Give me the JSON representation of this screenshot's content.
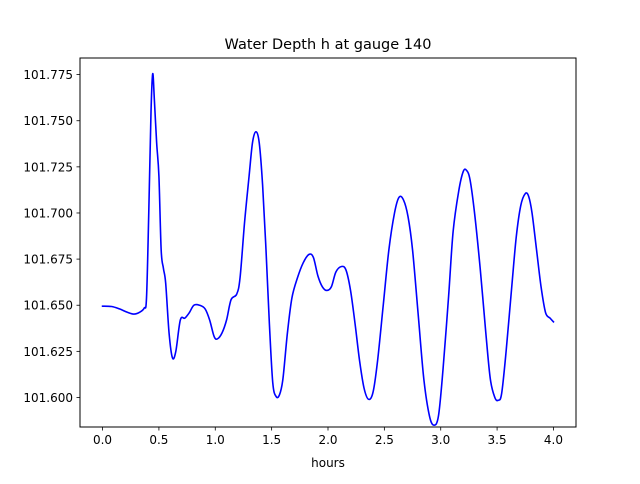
{
  "chart_data": {
    "type": "line",
    "title": "Water Depth h at gauge 140",
    "xlabel": "hours",
    "ylabel": "",
    "xlim": [
      -0.2,
      4.2
    ],
    "ylim": [
      101.584,
      101.784
    ],
    "grid": false,
    "legend": "none",
    "x_ticks": [
      {
        "value": 0.0,
        "label": "0.0"
      },
      {
        "value": 0.5,
        "label": "0.5"
      },
      {
        "value": 1.0,
        "label": "1.0"
      },
      {
        "value": 1.5,
        "label": "1.5"
      },
      {
        "value": 2.0,
        "label": "2.0"
      },
      {
        "value": 2.5,
        "label": "2.5"
      },
      {
        "value": 3.0,
        "label": "3.0"
      },
      {
        "value": 3.5,
        "label": "3.5"
      },
      {
        "value": 4.0,
        "label": "4.0"
      }
    ],
    "y_ticks": [
      {
        "value": 101.6,
        "label": "101.600"
      },
      {
        "value": 101.625,
        "label": "101.625"
      },
      {
        "value": 101.65,
        "label": "101.650"
      },
      {
        "value": 101.675,
        "label": "101.675"
      },
      {
        "value": 101.7,
        "label": "101.700"
      },
      {
        "value": 101.725,
        "label": "101.725"
      },
      {
        "value": 101.75,
        "label": "101.750"
      },
      {
        "value": 101.775,
        "label": "101.775"
      }
    ],
    "series": [
      {
        "color": "#0000ff",
        "points": [
          [
            0.0,
            101.6495
          ],
          [
            0.08,
            101.6493
          ],
          [
            0.15,
            101.648
          ],
          [
            0.22,
            101.6462
          ],
          [
            0.28,
            101.6452
          ],
          [
            0.33,
            101.6462
          ],
          [
            0.37,
            101.6485
          ],
          [
            0.39,
            101.654
          ],
          [
            0.41,
            101.7
          ],
          [
            0.43,
            101.755
          ],
          [
            0.445,
            101.7755
          ],
          [
            0.46,
            101.761
          ],
          [
            0.48,
            101.738
          ],
          [
            0.5,
            101.72
          ],
          [
            0.52,
            101.68
          ],
          [
            0.54,
            101.67
          ],
          [
            0.56,
            101.662
          ],
          [
            0.59,
            101.635
          ],
          [
            0.62,
            101.6215
          ],
          [
            0.65,
            101.625
          ],
          [
            0.69,
            101.642
          ],
          [
            0.73,
            101.643
          ],
          [
            0.77,
            101.646
          ],
          [
            0.81,
            101.65
          ],
          [
            0.86,
            101.65
          ],
          [
            0.91,
            101.648
          ],
          [
            0.95,
            101.642
          ],
          [
            0.99,
            101.633
          ],
          [
            1.02,
            101.6318
          ],
          [
            1.06,
            101.635
          ],
          [
            1.1,
            101.642
          ],
          [
            1.14,
            101.653
          ],
          [
            1.19,
            101.656
          ],
          [
            1.22,
            101.665
          ],
          [
            1.26,
            101.695
          ],
          [
            1.3,
            101.72
          ],
          [
            1.33,
            101.738
          ],
          [
            1.36,
            101.744
          ],
          [
            1.39,
            101.738
          ],
          [
            1.42,
            101.715
          ],
          [
            1.45,
            101.68
          ],
          [
            1.48,
            101.64
          ],
          [
            1.51,
            101.608
          ],
          [
            1.54,
            101.6005
          ],
          [
            1.57,
            101.6015
          ],
          [
            1.6,
            101.61
          ],
          [
            1.64,
            101.635
          ],
          [
            1.68,
            101.654
          ],
          [
            1.73,
            101.665
          ],
          [
            1.78,
            101.673
          ],
          [
            1.83,
            101.6775
          ],
          [
            1.87,
            101.676
          ],
          [
            1.91,
            101.666
          ],
          [
            1.95,
            101.66
          ],
          [
            1.99,
            101.658
          ],
          [
            2.03,
            101.66
          ],
          [
            2.07,
            101.668
          ],
          [
            2.12,
            101.671
          ],
          [
            2.16,
            101.669
          ],
          [
            2.2,
            101.658
          ],
          [
            2.24,
            101.64
          ],
          [
            2.28,
            101.62
          ],
          [
            2.32,
            101.605
          ],
          [
            2.36,
            101.599
          ],
          [
            2.4,
            101.603
          ],
          [
            2.44,
            101.62
          ],
          [
            2.49,
            101.65
          ],
          [
            2.54,
            101.68
          ],
          [
            2.59,
            101.7
          ],
          [
            2.63,
            101.7085
          ],
          [
            2.67,
            101.707
          ],
          [
            2.71,
            101.698
          ],
          [
            2.75,
            101.68
          ],
          [
            2.8,
            101.645
          ],
          [
            2.85,
            101.61
          ],
          [
            2.9,
            101.59
          ],
          [
            2.94,
            101.585
          ],
          [
            2.98,
            101.59
          ],
          [
            3.02,
            101.615
          ],
          [
            3.07,
            101.655
          ],
          [
            3.11,
            101.69
          ],
          [
            3.16,
            101.712
          ],
          [
            3.2,
            101.7225
          ],
          [
            3.23,
            101.723
          ],
          [
            3.26,
            101.718
          ],
          [
            3.3,
            101.7
          ],
          [
            3.35,
            101.67
          ],
          [
            3.4,
            101.635
          ],
          [
            3.44,
            101.61
          ],
          [
            3.48,
            101.6
          ],
          [
            3.51,
            101.5985
          ],
          [
            3.54,
            101.602
          ],
          [
            3.58,
            101.625
          ],
          [
            3.63,
            101.66
          ],
          [
            3.67,
            101.687
          ],
          [
            3.71,
            101.704
          ],
          [
            3.75,
            101.7105
          ],
          [
            3.78,
            101.709
          ],
          [
            3.81,
            101.7
          ],
          [
            3.85,
            101.68
          ],
          [
            3.89,
            101.66
          ],
          [
            3.93,
            101.646
          ],
          [
            3.97,
            101.643
          ],
          [
            4.0,
            101.641
          ]
        ]
      }
    ]
  }
}
